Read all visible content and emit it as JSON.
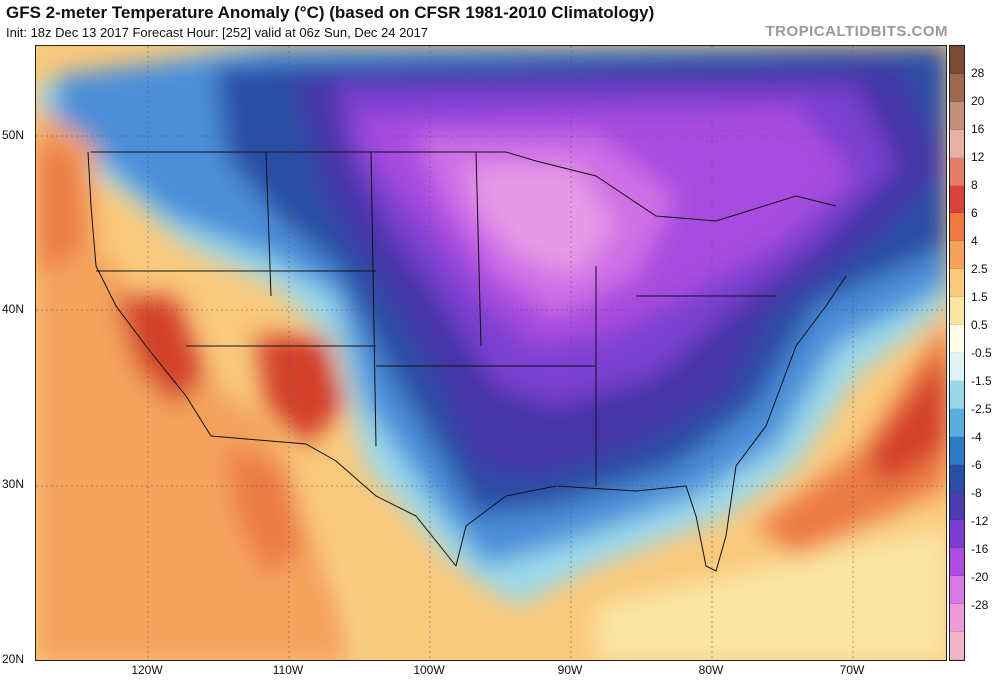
{
  "header": {
    "title": "GFS 2-meter Temperature Anomaly (°C) (based on CFSR 1981-2010 Climatology)",
    "subtitle": "Init: 18z Dec 13 2017   Forecast Hour: [252]   valid at 06z Sun, Dec 24 2017",
    "brand": "TROPICALTIDBITS.COM"
  },
  "axes": {
    "lat_labels": [
      "50N",
      "40N",
      "30N",
      "20N"
    ],
    "lon_labels": [
      "120W",
      "110W",
      "100W",
      "90W",
      "80W",
      "70W"
    ]
  },
  "colorbar": {
    "labels": [
      "28",
      "20",
      "16",
      "12",
      "8",
      "6",
      "4",
      "2.5",
      "1.5",
      "0.5",
      "-0.5",
      "-1.5",
      "-2.5",
      "-4",
      "-6",
      "-8",
      "-12",
      "-16",
      "-20",
      "-28"
    ],
    "colors": [
      "#7a4a32",
      "#a06a50",
      "#c48f78",
      "#e7b2a4",
      "#e57d6a",
      "#d8443a",
      "#ee7a42",
      "#f4a25c",
      "#f9c97c",
      "#fbe5a5",
      "#fffce8",
      "#dff3f2",
      "#9ad9ec",
      "#5aaee0",
      "#2f7cc6",
      "#2c4da6",
      "#4b3db0",
      "#7a3dd0",
      "#b04be0",
      "#d878e6",
      "#ec9ad8",
      "#f0b6c8"
    ]
  },
  "map": {
    "colors": {
      "deep_red": "#d33f2b",
      "orange_red": "#ec7a44",
      "orange": "#f4a25c",
      "light_orange": "#f9c97c",
      "cream": "#fbe5a5",
      "near_zero": "#fffbe0",
      "light_blue": "#9ad9ec",
      "blue": "#4b8ed8",
      "dark_blue": "#2c4da6",
      "indigo": "#4535a8",
      "purple": "#7b3fd2",
      "violet": "#a84be0",
      "magenta": "#cf6fe6",
      "pink": "#e59ae6"
    }
  }
}
